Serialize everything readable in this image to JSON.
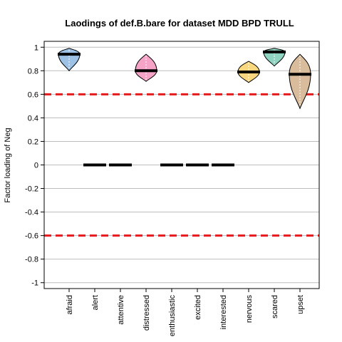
{
  "chart_data": {
    "type": "violin",
    "title": "Laodings of def.B.bare for dataset MDD BPD TRULL",
    "xlabel": "",
    "ylabel": "Factor loading of Neg",
    "ylim": [
      -1.05,
      1.05
    ],
    "yticks": [
      1,
      0.8,
      0.6,
      0.4,
      0.2,
      0,
      -0.2,
      -0.4,
      -0.6,
      -0.8,
      -1
    ],
    "ytick_labels": [
      "1",
      "0.8",
      "0.6",
      "0.4",
      "0.2",
      "0",
      "-0.2",
      "-0.4",
      "-0.6",
      "-0.8",
      "-1"
    ],
    "grid": true,
    "reference_lines": [
      0.6,
      -0.6
    ],
    "reference_color": "#e8191c",
    "categories": [
      "afraid",
      "alert",
      "attentive",
      "distressed",
      "enthusiastic",
      "excited",
      "interested",
      "nervous",
      "scared",
      "upset"
    ],
    "medians": [
      0.94,
      0,
      0,
      0.8,
      0,
      0,
      0,
      0.79,
      0.96,
      0.77
    ],
    "mins": [
      0.8,
      0,
      0,
      0.71,
      0,
      0,
      0,
      0.7,
      0.84,
      0.48
    ],
    "maxs": [
      0.99,
      0,
      0,
      0.94,
      0,
      0,
      0,
      0.88,
      0.99,
      0.94
    ],
    "colors": [
      "#9ec2e6",
      null,
      null,
      "#f5a3c7",
      null,
      null,
      null,
      "#f9d77e",
      "#8fd4c1",
      "#d9bc9c"
    ]
  }
}
